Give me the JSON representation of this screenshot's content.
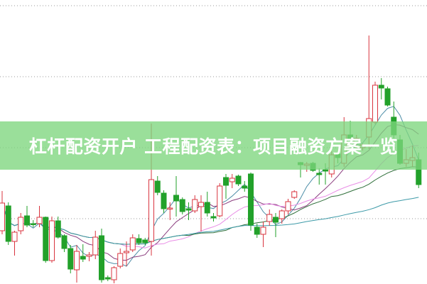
{
  "title": "杠杆配资开户 工程配资表：项目融资方案一览",
  "chart_data": {
    "type": "candlestick",
    "title": "",
    "xlabel": "",
    "ylabel": "",
    "ylim": [
      0,
      40
    ],
    "grid": "horizontal dotted",
    "colors": {
      "up": "#d9343f",
      "down": "#22a12a",
      "grid": "#999999",
      "banner": "#7dd67d"
    },
    "ma_colors": [
      "#4f8fa8",
      "#8a3c7e",
      "#e98ee6",
      "#2f6f3a",
      "#3d9aa8"
    ],
    "ma_periods": [
      5,
      10,
      20,
      30,
      60
    ],
    "ohlc": [
      [
        7.5,
        13.1,
        7.0,
        11.4
      ],
      [
        11.0,
        11.5,
        5.5,
        6.0
      ],
      [
        6.0,
        7.5,
        4.0,
        7.3
      ],
      [
        7.5,
        10.0,
        7.0,
        9.4
      ],
      [
        9.6,
        11.0,
        8.0,
        8.3
      ],
      [
        8.5,
        9.0,
        8.0,
        8.4
      ],
      [
        8.5,
        11.0,
        8.0,
        9.4
      ],
      [
        9.4,
        9.5,
        3.0,
        3.3
      ],
      [
        3.3,
        9.5,
        3.0,
        8.9
      ],
      [
        8.9,
        9.5,
        6.4,
        6.6
      ],
      [
        6.8,
        7.0,
        4.5,
        5.0
      ],
      [
        5.0,
        5.5,
        1.5,
        2.1
      ],
      [
        2.0,
        5.5,
        0.2,
        4.6
      ],
      [
        3.9,
        5.6,
        3.1,
        3.5
      ],
      [
        3.9,
        4.5,
        3.2,
        4.1
      ],
      [
        4.1,
        7.5,
        3.5,
        6.6
      ],
      [
        6.8,
        7.8,
        0.2,
        0.6
      ],
      [
        0.9,
        1.2,
        0.4,
        0.7
      ],
      [
        0.6,
        2.5,
        0.1,
        2.3
      ],
      [
        2.5,
        5.0,
        2.2,
        4.3
      ],
      [
        4.4,
        6.0,
        2.5,
        4.6
      ],
      [
        4.8,
        7.0,
        4.5,
        6.5
      ],
      [
        6.4,
        7.0,
        5.5,
        5.8
      ],
      [
        6.2,
        6.5,
        5.5,
        5.8
      ],
      [
        6.0,
        22.6,
        4.0,
        14.7
      ],
      [
        14.5,
        15.2,
        12.5,
        12.9
      ],
      [
        12.8,
        13.2,
        10.0,
        10.6
      ],
      [
        10.6,
        11.5,
        9.0,
        10.7
      ],
      [
        12.5,
        15.2,
        9.5,
        11.7
      ],
      [
        11.9,
        12.2,
        9.8,
        10.2
      ],
      [
        10.6,
        11.5,
        9.0,
        10.4
      ],
      [
        10.3,
        12.5,
        10.0,
        11.9
      ],
      [
        10.9,
        12.5,
        7.4,
        11.5
      ],
      [
        11.5,
        13.0,
        9.5,
        10.0
      ],
      [
        9.5,
        10.0,
        8.8,
        9.3
      ],
      [
        9.6,
        14.2,
        9.4,
        13.8
      ],
      [
        15.0,
        15.5,
        12.0,
        13.9
      ],
      [
        14.4,
        15.5,
        13.5,
        14.9
      ],
      [
        15.2,
        15.4,
        13.8,
        14.1
      ],
      [
        13.8,
        14.5,
        13.0,
        13.5
      ],
      [
        15.5,
        15.7,
        7.5,
        8.3
      ],
      [
        8.0,
        8.5,
        6.5,
        7.0
      ],
      [
        7.0,
        8.8,
        5.2,
        8.0
      ],
      [
        8.8,
        10.5,
        8.2,
        9.8
      ],
      [
        9.4,
        10.0,
        6.6,
        8.7
      ],
      [
        9.2,
        10.5,
        8.5,
        10.3
      ],
      [
        10.3,
        12.0,
        9.8,
        11.6
      ],
      [
        12.2,
        13.2,
        12.0,
        13.0
      ],
      [
        17.1,
        17.2,
        15.0,
        16.8
      ],
      [
        16.7,
        17.2,
        15.8,
        16.9
      ],
      [
        17.0,
        17.2,
        15.8,
        16.0
      ],
      [
        15.6,
        16.3,
        14.0,
        15.4
      ],
      [
        16.1,
        17.0,
        14.0,
        15.9
      ],
      [
        15.5,
        18.7,
        15.0,
        18.2
      ],
      [
        18.3,
        18.5,
        17.0,
        17.8
      ],
      [
        17.0,
        23.5,
        16.5,
        21.0
      ],
      [
        21.0,
        23.0,
        19.5,
        20.5
      ],
      [
        20.0,
        21.0,
        19.0,
        20.5
      ],
      [
        19.2,
        19.8,
        18.8,
        19.6
      ],
      [
        20.7,
        35.0,
        19.0,
        23.3
      ],
      [
        22.8,
        28.5,
        22.5,
        28.0
      ],
      [
        28.0,
        29.0,
        26.0,
        27.6
      ],
      [
        27.5,
        27.8,
        25.0,
        25.2
      ],
      [
        23.5,
        25.7,
        20.5,
        21.0
      ],
      [
        20.3,
        21.0,
        16.8,
        17.0
      ],
      [
        17.0,
        19.0,
        16.5,
        17.5
      ],
      [
        17.4,
        19.5,
        16.5,
        17.8
      ],
      [
        17.5,
        18.5,
        13.5,
        14.0
      ]
    ]
  }
}
